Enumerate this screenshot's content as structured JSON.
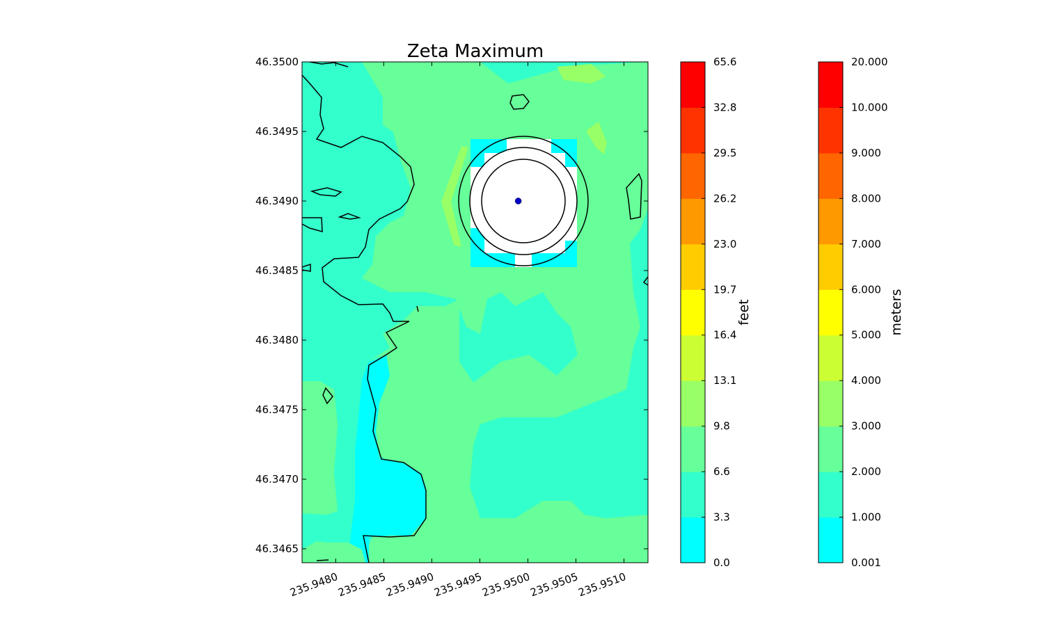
{
  "chart_data": {
    "type": "heatmap",
    "title": "Zeta Maximum",
    "xlabel": "",
    "ylabel": "",
    "xlim": [
      235.94765,
      235.95125
    ],
    "ylim": [
      46.3464,
      46.35
    ],
    "x_ticks": [
      235.948,
      235.9485,
      235.949,
      235.9495,
      235.95,
      235.9505,
      235.951
    ],
    "x_tick_labels": [
      "235.9480",
      "235.9485",
      "235.9490",
      "235.9495",
      "235.9500",
      "235.9505",
      "235.9510"
    ],
    "y_ticks": [
      46.3465,
      46.347,
      46.3475,
      46.348,
      46.3485,
      46.349,
      46.3495,
      46.35
    ],
    "y_tick_labels": [
      "46.3465",
      "46.3470",
      "46.3475",
      "46.3480",
      "46.3485",
      "46.3490",
      "46.3495",
      "46.3500"
    ],
    "marker_point": {
      "x": 235.9499,
      "y": 46.349,
      "color": "#0000cc"
    },
    "level_colors": [
      "#00ffff",
      "#33ffcc",
      "#66ff99",
      "#99ff66",
      "#ccff33",
      "#ffff00",
      "#ffcc00",
      "#ff9900",
      "#ff6600",
      "#ff3300",
      "#ff0000"
    ],
    "colorbars": [
      {
        "label": "feet",
        "tick_labels": [
          "0.0",
          "3.3",
          "6.6",
          "9.8",
          "13.1",
          "16.4",
          "19.7",
          "23.0",
          "26.2",
          "29.5",
          "32.8",
          "65.6"
        ]
      },
      {
        "label": "meters",
        "tick_labels": [
          "0.001",
          "1.000",
          "2.000",
          "3.000",
          "4.000",
          "5.000",
          "6.000",
          "7.000",
          "8.000",
          "9.000",
          "10.000",
          "20.000"
        ]
      }
    ]
  }
}
